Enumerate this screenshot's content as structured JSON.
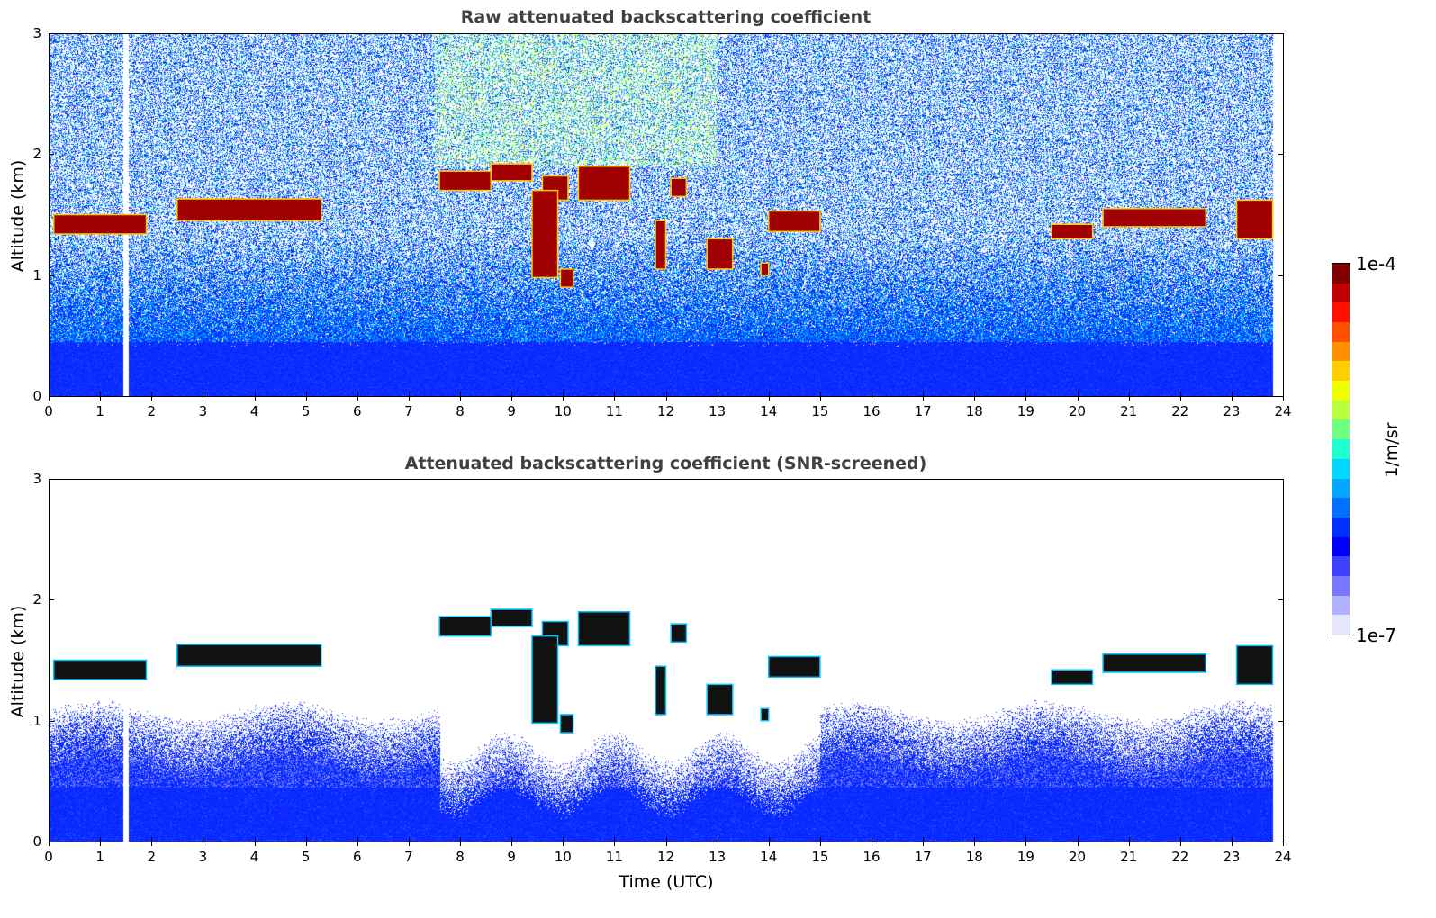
{
  "chart_data": [
    {
      "type": "heatmap",
      "title": "Raw attenuated backscattering coefficient",
      "xlabel": "",
      "ylabel": "Altitude (km)",
      "xlim": [
        0,
        24
      ],
      "ylim": [
        0,
        3
      ],
      "xticks": [
        "0",
        "1",
        "2",
        "3",
        "4",
        "5",
        "6",
        "7",
        "8",
        "9",
        "10",
        "11",
        "12",
        "13",
        "14",
        "15",
        "16",
        "17",
        "18",
        "19",
        "20",
        "21",
        "22",
        "23",
        "24"
      ],
      "yticks": [
        "0",
        "1",
        "2",
        "3"
      ],
      "data_gap_hours": [
        1.45,
        1.55
      ],
      "data_end_hour": 23.8,
      "cloud_layers": [
        {
          "t0": 0.1,
          "t1": 1.9,
          "base": 1.34,
          "top": 1.5
        },
        {
          "t0": 2.5,
          "t1": 5.3,
          "base": 1.45,
          "top": 1.63
        },
        {
          "t0": 7.6,
          "t1": 8.6,
          "base": 1.7,
          "top": 1.86
        },
        {
          "t0": 8.6,
          "t1": 9.4,
          "base": 1.78,
          "top": 1.92
        },
        {
          "t0": 9.6,
          "t1": 10.1,
          "base": 1.62,
          "top": 1.82
        },
        {
          "t0": 10.3,
          "t1": 11.3,
          "base": 1.62,
          "top": 1.9
        },
        {
          "t0": 12.1,
          "t1": 12.4,
          "base": 1.65,
          "top": 1.8
        },
        {
          "t0": 14.0,
          "t1": 15.0,
          "base": 1.36,
          "top": 1.53
        },
        {
          "t0": 19.5,
          "t1": 20.3,
          "base": 1.3,
          "top": 1.42
        },
        {
          "t0": 20.5,
          "t1": 22.5,
          "base": 1.4,
          "top": 1.55
        },
        {
          "t0": 23.1,
          "t1": 23.8,
          "base": 1.3,
          "top": 1.62
        }
      ],
      "precip_streaks": [
        {
          "t0": 9.4,
          "t1": 9.9,
          "base": 0.98,
          "top": 1.7
        },
        {
          "t0": 9.95,
          "t1": 10.2,
          "base": 0.9,
          "top": 1.05
        },
        {
          "t0": 11.8,
          "t1": 12.0,
          "base": 1.05,
          "top": 1.45
        },
        {
          "t0": 12.8,
          "t1": 13.3,
          "base": 1.05,
          "top": 1.3
        },
        {
          "t0": 13.85,
          "t1": 14.0,
          "base": 1.0,
          "top": 1.1
        }
      ]
    },
    {
      "type": "heatmap",
      "title": "Attenuated backscattering coefficient (SNR-screened)",
      "xlabel": "Time (UTC)",
      "ylabel": "Altitude (km)",
      "xlim": [
        0,
        24
      ],
      "ylim": [
        0,
        3
      ],
      "xticks": [
        "0",
        "1",
        "2",
        "3",
        "4",
        "5",
        "6",
        "7",
        "8",
        "9",
        "10",
        "11",
        "12",
        "13",
        "14",
        "15",
        "16",
        "17",
        "18",
        "19",
        "20",
        "21",
        "22",
        "23",
        "24"
      ],
      "yticks": [
        "0",
        "1",
        "2",
        "3"
      ]
    }
  ],
  "colorbar": {
    "max_label": "1e-4",
    "min_label": "1e-7",
    "unit_label": "1/m/sr",
    "colors": [
      "#e6e6fa",
      "#b0b0ff",
      "#7878ff",
      "#4040ff",
      "#0000ff",
      "#0030ff",
      "#0070ff",
      "#00a8ff",
      "#00d8ff",
      "#20ffd0",
      "#70ff80",
      "#b8ff40",
      "#f0ff00",
      "#ffd000",
      "#ff9000",
      "#ff5000",
      "#ff1000",
      "#c00000",
      "#800000"
    ]
  }
}
